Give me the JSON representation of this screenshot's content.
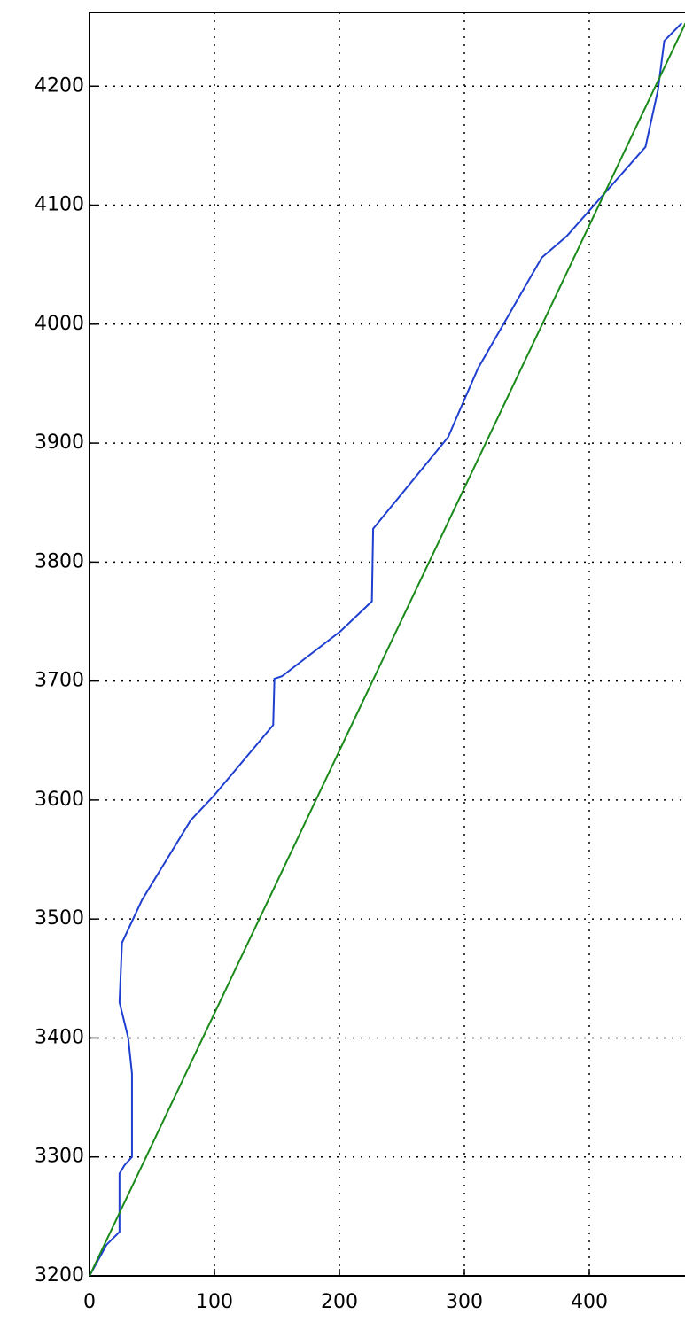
{
  "chart_data": {
    "type": "line",
    "series": [
      {
        "color": "#1f3fd0",
        "x": [
          0,
          13.5,
          24,
          24,
          28,
          34,
          34,
          31,
          24,
          26,
          42,
          81,
          99,
          147,
          148,
          154,
          201,
          226,
          227,
          287,
          294,
          311,
          362,
          382,
          445,
          455,
          460,
          474
        ],
        "values": [
          3200,
          3226,
          3237,
          3286,
          3293,
          3300,
          3370,
          3400,
          3430,
          3480,
          3516,
          3583,
          3603,
          3663,
          3702,
          3704,
          3742,
          3767,
          3828,
          3905,
          3922,
          3963,
          4056,
          4074,
          4149,
          4197,
          4238,
          4253
        ]
      },
      {
        "color": "#1a8a1a",
        "x": [
          0,
          477
        ],
        "values": [
          3200,
          4253
        ]
      }
    ],
    "xlim": [
      0,
      500
    ],
    "xticks": [
      0,
      100,
      200,
      300,
      400
    ],
    "ylim": [
      3200,
      4262
    ],
    "yticks": [
      3200,
      3300,
      3400,
      3500,
      3600,
      3700,
      3800,
      3900,
      4000,
      4100,
      4200
    ],
    "grid": true
  }
}
